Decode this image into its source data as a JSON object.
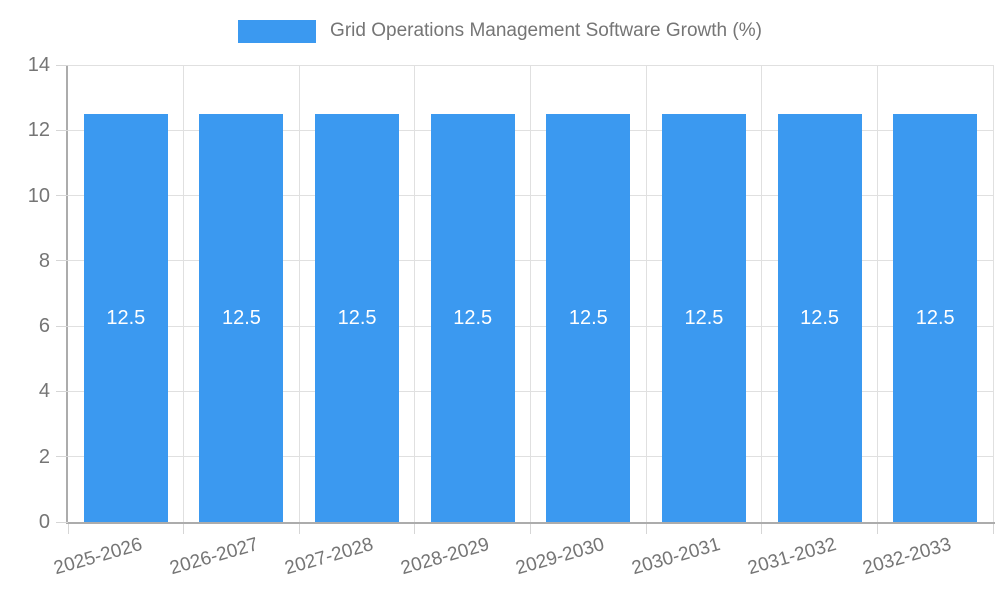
{
  "legend": {
    "label": "Grid Operations Management Software Growth (%)",
    "position": "top"
  },
  "chart_data": {
    "type": "bar",
    "title": "Grid Operations Management Software Growth (%)",
    "categories": [
      "2025-2026",
      "2026-2027",
      "2027-2028",
      "2028-2029",
      "2029-2030",
      "2030-2031",
      "2031-2032",
      "2032-2033"
    ],
    "values": [
      12.5,
      12.5,
      12.5,
      12.5,
      12.5,
      12.5,
      12.5,
      12.5
    ],
    "value_labels_shown": true,
    "xlabel": "",
    "ylabel": "",
    "ylim": [
      0,
      14
    ],
    "yticks": [
      0,
      2,
      4,
      6,
      8,
      10,
      12,
      14
    ],
    "grid": true,
    "legend_position": "top",
    "colors": {
      "bar": "#3B99F0",
      "grid": "#E0E0E0",
      "tick": "#D6D6D6",
      "axis": "#ACACAC",
      "tick_text": "#757575",
      "value_text": "#FFFFFF"
    }
  }
}
